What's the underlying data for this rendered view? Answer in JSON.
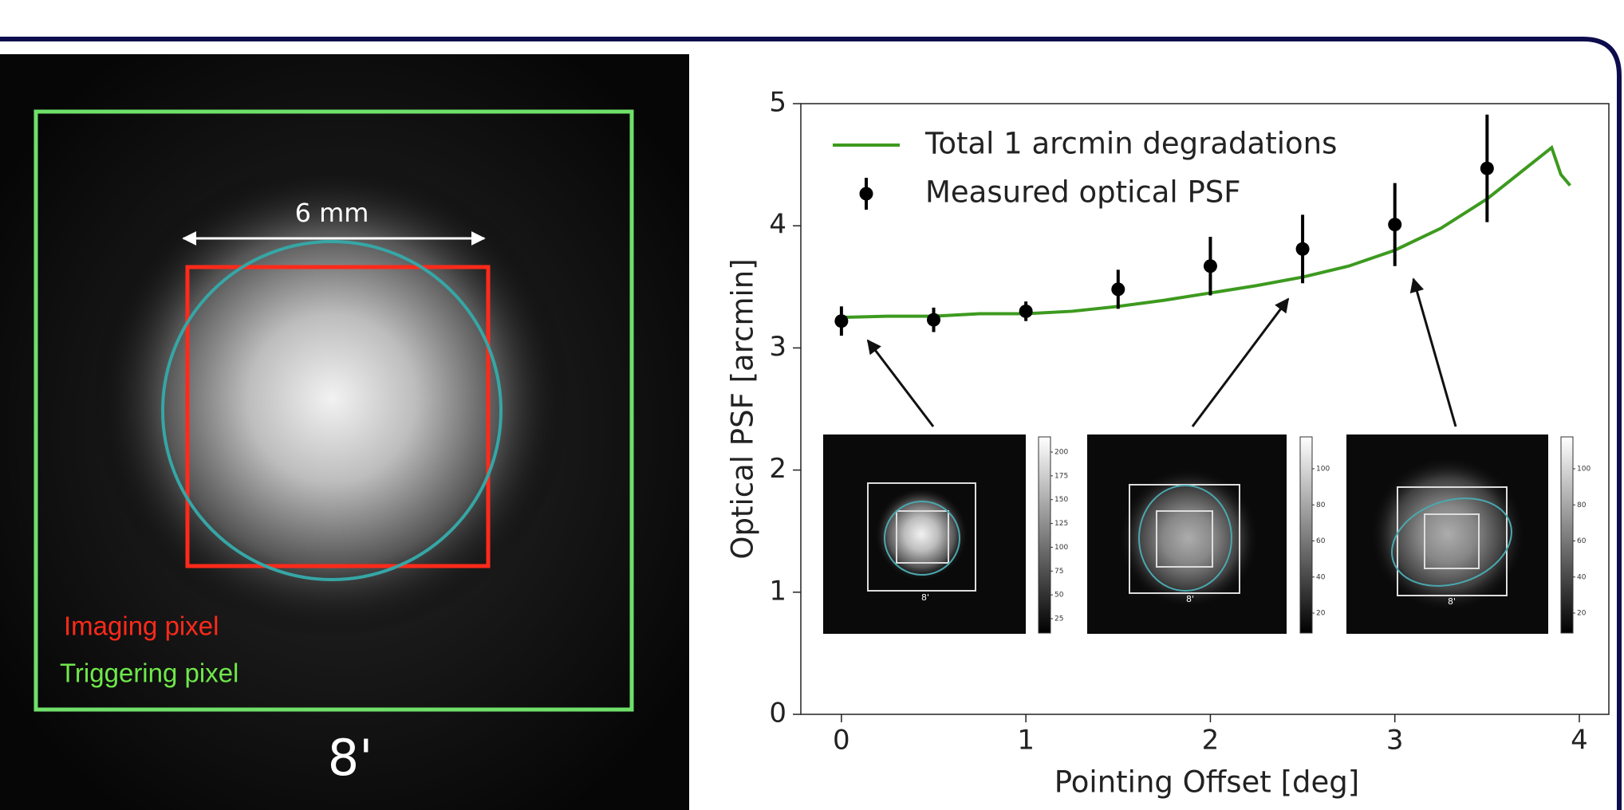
{
  "image_panel": {
    "scale_label": "6 mm",
    "imaging_label": "Imaging pixel",
    "triggering_label": "Triggering pixel",
    "field_label": "8'"
  },
  "insets": [
    {
      "field_label": "8'",
      "colorbar_ticks": [
        200,
        175,
        150,
        125,
        100,
        75,
        50,
        25
      ]
    },
    {
      "field_label": "8'",
      "colorbar_ticks": [
        100,
        80,
        60,
        40,
        20
      ]
    },
    {
      "field_label": "8'",
      "colorbar_ticks": [
        100,
        80,
        60,
        40,
        20
      ]
    }
  ],
  "chart_data": {
    "type": "line",
    "x_label": "Pointing Offset [deg]",
    "y_label": "Optical PSF [arcmin]",
    "xlim": [
      -0.22,
      4.16
    ],
    "ylim": [
      0,
      5
    ],
    "xticks": [
      0,
      1,
      2,
      3,
      4
    ],
    "yticks": [
      0,
      1,
      2,
      3,
      4,
      5
    ],
    "legend": "upper left",
    "series": [
      {
        "name": "Total 1 arcmin degradations",
        "type": "line",
        "color": "#3d9a1f",
        "x": [
          0,
          0.25,
          0.5,
          0.75,
          1,
          1.25,
          1.5,
          1.75,
          2,
          2.25,
          2.5,
          2.75,
          3,
          3.25,
          3.5,
          3.75,
          3.85,
          3.9,
          3.95
        ],
        "values": [
          3.25,
          3.26,
          3.26,
          3.28,
          3.28,
          3.3,
          3.34,
          3.39,
          3.45,
          3.51,
          3.58,
          3.67,
          3.8,
          3.98,
          4.22,
          4.52,
          4.64,
          4.42,
          4.33
        ]
      },
      {
        "name": "Measured optical PSF",
        "type": "errorbar",
        "color": "#000000",
        "x": [
          0,
          0.5,
          1,
          1.5,
          2,
          2.5,
          3,
          3.5
        ],
        "values": [
          3.22,
          3.23,
          3.3,
          3.48,
          3.67,
          3.81,
          4.01,
          4.47
        ],
        "errors": [
          0.12,
          0.1,
          0.08,
          0.16,
          0.24,
          0.28,
          0.34,
          0.44
        ]
      }
    ]
  }
}
